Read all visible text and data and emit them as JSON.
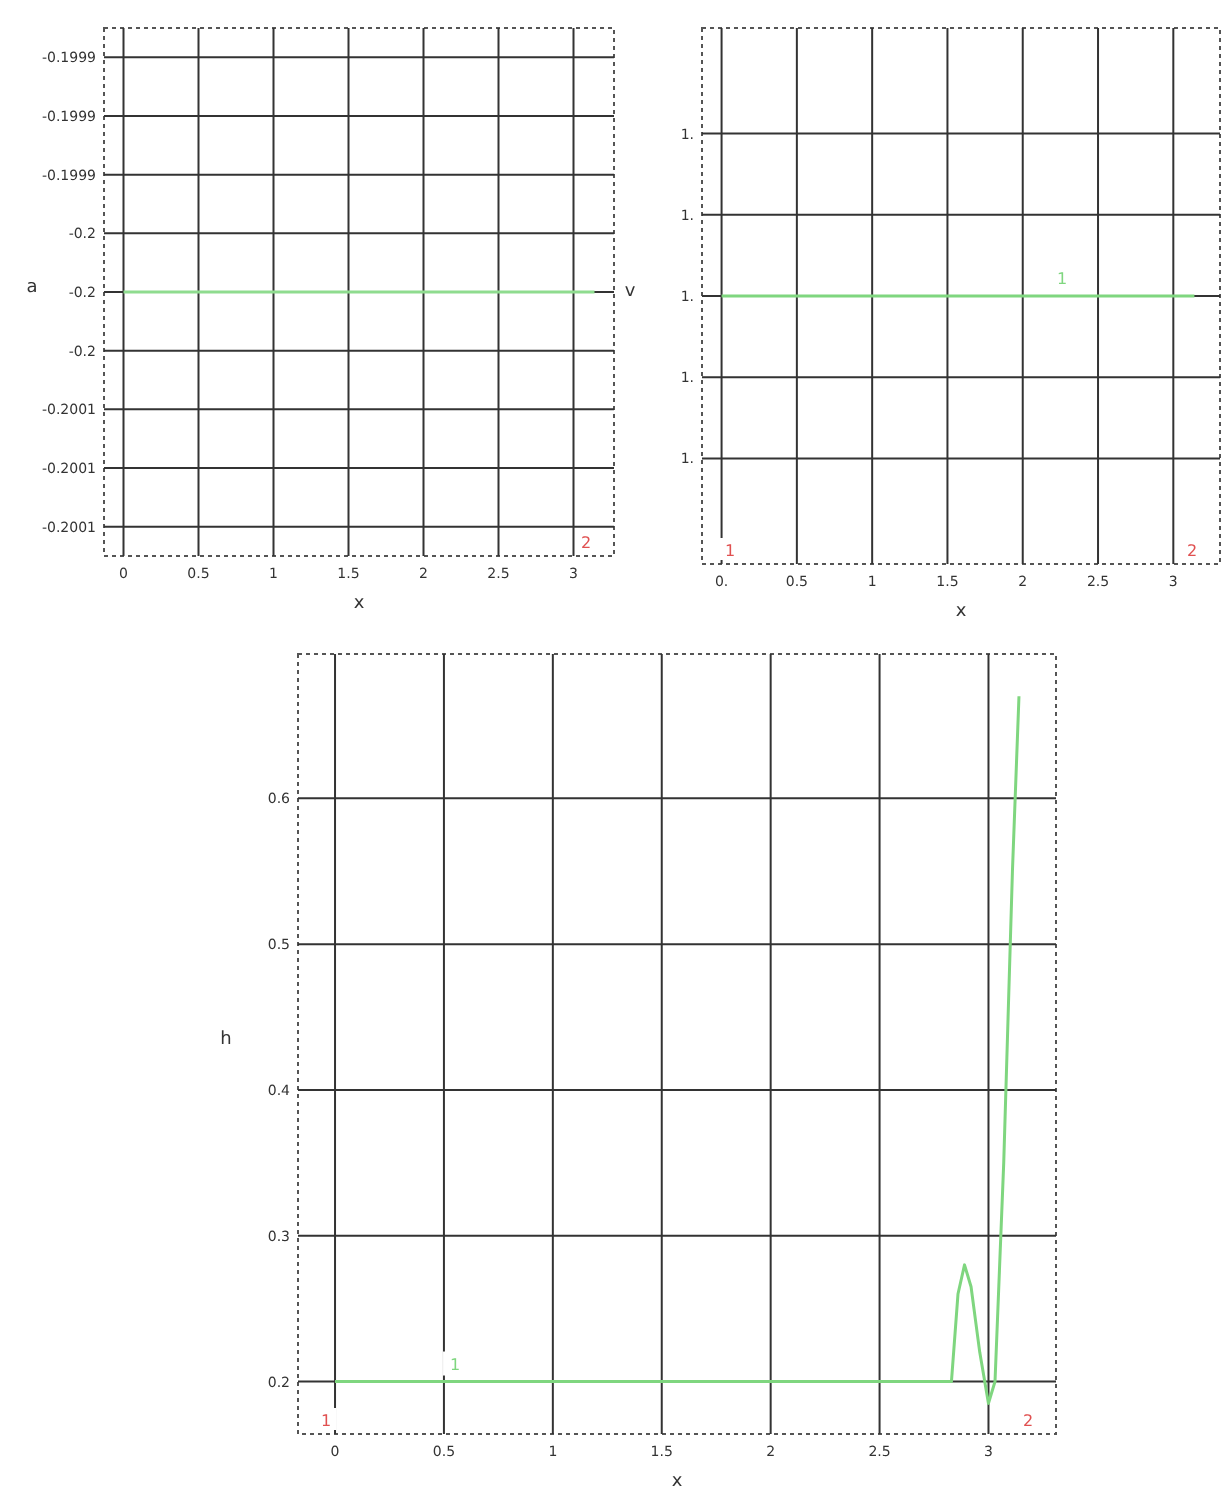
{
  "chart_data": [
    {
      "type": "line",
      "xlabel": "x",
      "ylabel": "a",
      "xlim": [
        -0.13,
        3.27
      ],
      "xticks": [
        0,
        0.5,
        1,
        1.5,
        2,
        2.5,
        3
      ],
      "ylim": [
        -0.200135,
        -0.199865
      ],
      "yticks": [
        {
          "value": -0.19988,
          "label": "-0.1999"
        },
        {
          "value": -0.19991,
          "label": "-0.1999"
        },
        {
          "value": -0.19994,
          "label": "-0.1999"
        },
        {
          "value": -0.19997,
          "label": "-0.2"
        },
        {
          "value": -0.2,
          "label": "-0.2"
        },
        {
          "value": -0.20003,
          "label": "-0.2"
        },
        {
          "value": -0.20006,
          "label": "-0.2001"
        },
        {
          "value": -0.20009,
          "label": "-0.2001"
        },
        {
          "value": -0.20012,
          "label": "-0.2001"
        }
      ],
      "grid": true,
      "series": [
        {
          "color": "#8fdc8f",
          "x": [
            0,
            3.14
          ],
          "values": [
            -0.2,
            -0.2
          ]
        }
      ],
      "annotations": [
        "2"
      ]
    },
    {
      "type": "line",
      "xlabel": "x",
      "ylabel": "v",
      "xlim": [
        -0.13,
        3.31
      ],
      "xticks": [
        {
          "value": 0,
          "label": "0."
        },
        0.5,
        1,
        1.5,
        2,
        2.5,
        3
      ],
      "ylim": [
        0.99967,
        1.00033
      ],
      "yticks": [
        {
          "value": 0.9998,
          "label": "1."
        },
        {
          "value": 0.9999,
          "label": "1."
        },
        {
          "value": 1,
          "label": "1."
        },
        {
          "value": 1.0001,
          "label": "1."
        },
        {
          "value": 1.0002,
          "label": "1."
        }
      ],
      "grid": true,
      "series": [
        {
          "name": "1",
          "color": "#7fd67f",
          "x": [
            0,
            3.14
          ],
          "values": [
            1,
            1
          ]
        }
      ],
      "annotations": [
        "1",
        "2"
      ]
    },
    {
      "type": "line",
      "xlabel": "x",
      "ylabel": "h",
      "xlim": [
        -0.17,
        3.31
      ],
      "xticks": [
        0,
        0.5,
        1,
        1.5,
        2,
        2.5,
        3
      ],
      "ylim": [
        0.164,
        0.699
      ],
      "yticks": [
        0.2,
        0.3,
        0.4,
        0.5,
        0.6
      ],
      "grid": true,
      "series": [
        {
          "name": "1",
          "color": "#7fd67f",
          "x": [
            0,
            2.83,
            2.86,
            2.89,
            2.92,
            2.96,
            3.0,
            3.03,
            3.07,
            3.11,
            3.14
          ],
          "values": [
            0.2,
            0.2,
            0.26,
            0.28,
            0.265,
            0.22,
            0.185,
            0.2,
            0.35,
            0.55,
            0.67
          ]
        }
      ],
      "annotations": [
        "1",
        "2"
      ]
    }
  ]
}
